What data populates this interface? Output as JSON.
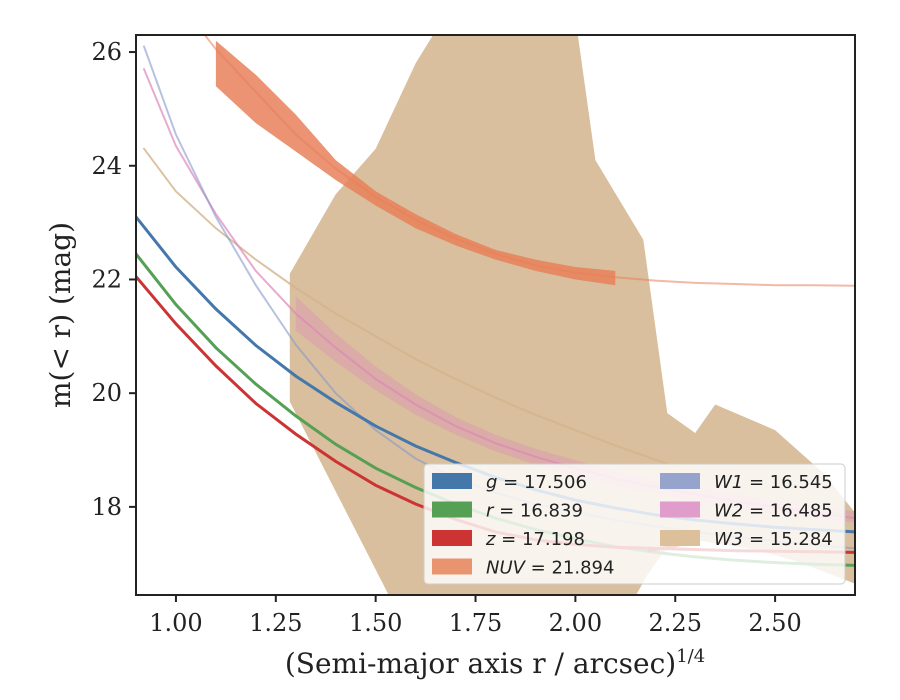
{
  "chart_data": {
    "type": "line",
    "xlabel": "(Semi-major axis r / arcsec)",
    "xlabel_sup": "1/4",
    "ylabel": "m(< r) (mag)",
    "xlim": [
      0.9,
      2.7
    ],
    "ylim": [
      26.3,
      16.45
    ],
    "y_inverted": true,
    "x_ticks": [
      1.0,
      1.25,
      1.5,
      1.75,
      2.0,
      2.25,
      2.5
    ],
    "x_tick_labels": [
      "1.00",
      "1.25",
      "1.50",
      "1.75",
      "2.00",
      "2.25",
      "2.50"
    ],
    "y_ticks": [
      18,
      20,
      22,
      24,
      26
    ],
    "y_tick_labels": [
      "18",
      "20",
      "22",
      "24",
      "26"
    ],
    "legend_position": "lower-right",
    "series": [
      {
        "name": "g",
        "label_value": "g = 17.506",
        "color": "#4477aa",
        "opacity": 1,
        "width": 3,
        "x": [
          0.9,
          1.0,
          1.1,
          1.2,
          1.3,
          1.4,
          1.5,
          1.6,
          1.7,
          1.8,
          1.9,
          2.0,
          2.1,
          2.2,
          2.3,
          2.4,
          2.5,
          2.6,
          2.7
        ],
        "y": [
          23.1,
          22.22,
          21.48,
          20.84,
          20.3,
          19.84,
          19.42,
          19.07,
          18.78,
          18.52,
          18.3,
          18.12,
          17.98,
          17.86,
          17.77,
          17.7,
          17.64,
          17.6,
          17.56
        ],
        "band": false
      },
      {
        "name": "r",
        "label_value": "r = 16.839",
        "color": "#55a055",
        "opacity": 1,
        "width": 3,
        "x": [
          0.9,
          1.0,
          1.1,
          1.2,
          1.3,
          1.4,
          1.5,
          1.6,
          1.7,
          1.8,
          1.9,
          2.0,
          2.1,
          2.2,
          2.3,
          2.4,
          2.5,
          2.6,
          2.7
        ],
        "y": [
          22.45,
          21.56,
          20.8,
          20.16,
          19.6,
          19.1,
          18.68,
          18.34,
          18.05,
          17.8,
          17.6,
          17.44,
          17.3,
          17.2,
          17.12,
          17.06,
          17.02,
          16.99,
          16.97
        ],
        "band": false
      },
      {
        "name": "z",
        "label_value": "z = 17.198",
        "color": "#cc3333",
        "opacity": 1,
        "width": 3,
        "x": [
          0.9,
          1.0,
          1.1,
          1.2,
          1.3,
          1.4,
          1.5,
          1.6,
          1.7,
          1.8,
          1.9,
          2.0,
          2.1,
          2.2,
          2.3,
          2.4,
          2.5,
          2.6,
          2.7
        ],
        "y": [
          22.05,
          21.22,
          20.48,
          19.82,
          19.28,
          18.8,
          18.38,
          18.05,
          17.78,
          17.56,
          17.42,
          17.34,
          17.29,
          17.27,
          17.25,
          17.23,
          17.22,
          17.21,
          17.2
        ],
        "band": false
      },
      {
        "name": "NUV",
        "label_value": "NUV = 21.894",
        "color": "#e8805a",
        "opacity": 0.55,
        "width": 2,
        "x": [
          1.05,
          1.1,
          1.2,
          1.3,
          1.4,
          1.5,
          1.6,
          1.7,
          1.8,
          1.9,
          2.0,
          2.1,
          2.2,
          2.3,
          2.4,
          2.5,
          2.6,
          2.7
        ],
        "y": [
          26.5,
          26.05,
          25.3,
          24.55,
          23.95,
          23.45,
          23.05,
          22.72,
          22.45,
          22.25,
          22.12,
          22.04,
          21.98,
          21.94,
          21.92,
          21.9,
          21.9,
          21.89
        ],
        "band": true,
        "band_x": [
          1.1,
          1.2,
          1.3,
          1.4,
          1.5,
          1.6,
          1.7,
          1.8,
          1.9,
          2.0,
          2.1
        ],
        "band_lo": [
          25.4,
          24.75,
          24.25,
          23.75,
          23.3,
          22.9,
          22.6,
          22.35,
          22.15,
          22.0,
          21.9
        ],
        "band_hi": [
          26.2,
          25.6,
          24.9,
          24.1,
          23.55,
          23.15,
          22.8,
          22.52,
          22.35,
          22.22,
          22.15
        ]
      },
      {
        "name": "W1",
        "label_value": "W1 = 16.545",
        "color": "#8899cc",
        "opacity": 0.6,
        "width": 2,
        "x": [
          0.92,
          1.0,
          1.1,
          1.2,
          1.3,
          1.4,
          1.5,
          1.6,
          1.7,
          1.8,
          1.9,
          2.0,
          2.1,
          2.2,
          2.3,
          2.4,
          2.5,
          2.6,
          2.7
        ],
        "y": [
          26.1,
          24.55,
          23.1,
          21.9,
          20.85,
          20.0,
          19.35,
          18.85,
          18.5,
          18.25,
          18.05,
          17.9,
          17.77,
          17.66,
          17.56,
          17.47,
          17.4,
          17.33,
          17.27
        ],
        "band": false
      },
      {
        "name": "W2",
        "label_value": "W2 = 16.485",
        "color": "#dd88bb",
        "opacity": 0.7,
        "width": 2,
        "x": [
          0.92,
          1.0,
          1.1,
          1.2,
          1.3,
          1.4,
          1.5,
          1.6,
          1.7,
          1.8,
          1.9,
          2.0,
          2.1,
          2.2,
          2.3,
          2.4,
          2.5,
          2.6,
          2.7
        ],
        "y": [
          25.7,
          24.35,
          23.15,
          22.15,
          21.4,
          20.8,
          20.25,
          19.8,
          19.42,
          19.12,
          18.88,
          18.68,
          18.5,
          18.35,
          18.22,
          18.1,
          18.0,
          17.9,
          17.8
        ],
        "band": true,
        "band_x": [
          1.3,
          1.4,
          1.5,
          1.6,
          1.7,
          1.8,
          1.9,
          2.0,
          2.1,
          2.2,
          2.3,
          2.4,
          2.5,
          2.6,
          2.7
        ],
        "band_lo": [
          21.1,
          20.55,
          20.05,
          19.62,
          19.27,
          18.98,
          18.74,
          18.54,
          18.37,
          18.22,
          18.09,
          17.98,
          17.88,
          17.8,
          17.72
        ],
        "band_hi": [
          21.7,
          21.05,
          20.47,
          19.98,
          19.58,
          19.27,
          19.02,
          18.82,
          18.64,
          18.48,
          18.35,
          18.23,
          18.12,
          18.02,
          17.92
        ]
      },
      {
        "name": "W3",
        "label_value": "W3 = 15.284",
        "color": "#d2b48c",
        "opacity": 0.8,
        "width": 2,
        "x": [
          0.92,
          1.0,
          1.1,
          1.2,
          1.3,
          1.4,
          1.5,
          1.6,
          1.7,
          1.8,
          1.9,
          2.0,
          2.1,
          2.2,
          2.3,
          2.4,
          2.5,
          2.6,
          2.7
        ],
        "y": [
          24.3,
          23.55,
          22.9,
          22.35,
          21.85,
          21.4,
          21.0,
          20.6,
          20.25,
          19.92,
          19.62,
          19.35,
          19.08,
          18.83,
          18.6,
          18.38,
          18.18,
          17.98,
          17.8
        ],
        "band": true,
        "band_poly": [
          [
            1.285,
            19.85
          ],
          [
            1.58,
            15.8
          ],
          [
            2.1,
            15.8
          ],
          [
            2.18,
            16.8
          ],
          [
            2.22,
            17.2
          ],
          [
            2.27,
            17.45
          ],
          [
            2.45,
            17.25
          ],
          [
            2.55,
            17.05
          ],
          [
            2.7,
            16.65
          ],
          [
            2.7,
            17.9
          ],
          [
            2.62,
            18.6
          ],
          [
            2.5,
            19.35
          ],
          [
            2.35,
            19.8
          ],
          [
            2.3,
            19.3
          ],
          [
            2.23,
            19.65
          ],
          [
            2.17,
            22.7
          ],
          [
            2.05,
            24.1
          ],
          [
            2.0,
            26.6
          ],
          [
            1.67,
            26.6
          ],
          [
            1.6,
            25.8
          ],
          [
            1.5,
            24.3
          ],
          [
            1.4,
            23.5
          ],
          [
            1.285,
            22.1
          ]
        ]
      }
    ],
    "z_tail": {
      "x": [
        2.18,
        2.26
      ],
      "y": [
        17.22,
        17.33
      ]
    },
    "legend_entries": [
      {
        "text": "g = 17.506",
        "color": "#4477aa",
        "col": 0,
        "row": 0
      },
      {
        "text": "r = 16.839",
        "color": "#55a055",
        "col": 0,
        "row": 1
      },
      {
        "text": "z = 17.198",
        "color": "#cc3333",
        "col": 0,
        "row": 2
      },
      {
        "text": "NUV = 21.894",
        "color": "#e8946e",
        "col": 0,
        "row": 3
      },
      {
        "text": "W1 = 16.545",
        "color": "#96a3cc",
        "col": 1,
        "row": 0
      },
      {
        "text": "W2 = 16.485",
        "color": "#e09ccb",
        "col": 1,
        "row": 1
      },
      {
        "text": "W3 = 15.284",
        "color": "#dcc09a",
        "col": 1,
        "row": 2
      }
    ]
  }
}
